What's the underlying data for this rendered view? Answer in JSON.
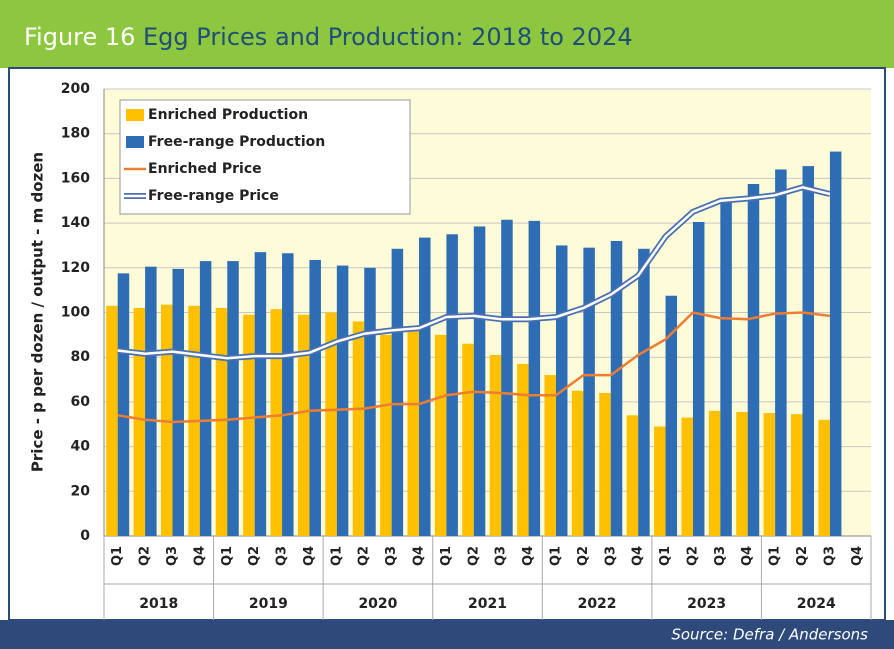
{
  "chart_data": {
    "type": "bar-line",
    "figure_label": "Figure 16",
    "title": "Egg Prices and Production: 2018 to 2024",
    "y_label": "Price - p per dozen / output - m dozen",
    "source": "Source: Defra / Andersons",
    "categories": [
      "Q1",
      "Q2",
      "Q3",
      "Q4",
      "Q1",
      "Q2",
      "Q3",
      "Q4",
      "Q1",
      "Q2",
      "Q3",
      "Q4",
      "Q1",
      "Q2",
      "Q3",
      "Q4",
      "Q1",
      "Q2",
      "Q3",
      "Q4",
      "Q1",
      "Q2",
      "Q3",
      "Q4",
      "Q1",
      "Q2",
      "Q3",
      "Q4"
    ],
    "year_groups": [
      "2018",
      "2019",
      "2020",
      "2021",
      "2022",
      "2023",
      "2024"
    ],
    "series": [
      {
        "name": "Enriched Production",
        "kind": "bar",
        "color": "#ffc000",
        "values": [
          103,
          102,
          103.5,
          103,
          102,
          99,
          101.5,
          99,
          100,
          96,
          90,
          92,
          90,
          86,
          81,
          77,
          72,
          65,
          64,
          54,
          49,
          53,
          56,
          55.5,
          55,
          54.5,
          52,
          null
        ]
      },
      {
        "name": "Free-range Production",
        "kind": "bar",
        "color": "#2e6db4",
        "values": [
          117.5,
          120.5,
          119.5,
          123,
          123,
          127,
          126.5,
          123.5,
          121,
          120,
          128.5,
          133.5,
          135,
          138.5,
          141.5,
          141,
          130,
          129,
          132,
          128.5,
          107.5,
          140.5,
          150,
          157.5,
          164,
          165.5,
          172,
          null
        ]
      },
      {
        "name": "Enriched Price",
        "kind": "line",
        "color": "#ed7d31",
        "values": [
          54,
          52,
          51,
          51.5,
          52,
          53,
          54,
          56,
          56.5,
          57,
          59,
          59,
          63,
          64.5,
          64,
          63,
          63,
          72,
          72,
          81,
          88,
          100,
          97.5,
          97,
          99.5,
          100,
          98.5,
          null
        ]
      },
      {
        "name": "Free-range Price",
        "kind": "double-line",
        "color": "#4a6fb0",
        "values": [
          83,
          81.5,
          82.5,
          81,
          79.5,
          80.5,
          80.5,
          82,
          87,
          90.5,
          92,
          93,
          98,
          98.5,
          97,
          97,
          98,
          102,
          108,
          116.5,
          134,
          145,
          150,
          151,
          152.5,
          156,
          153,
          null
        ]
      }
    ],
    "ylim": [
      0,
      200
    ],
    "yticks": [
      0,
      20,
      40,
      60,
      80,
      100,
      120,
      140,
      160,
      180,
      200
    ],
    "grid": true,
    "legend": "upper left"
  }
}
